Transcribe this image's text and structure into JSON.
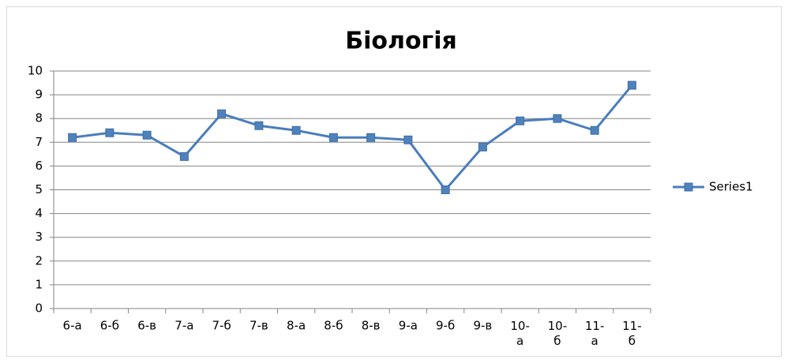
{
  "chart_data": {
    "type": "line",
    "title": "Біологія",
    "categories": [
      "6-а",
      "6-б",
      "6-в",
      "7-а",
      "7-б",
      "7-в",
      "8-а",
      "8-б",
      "8-в",
      "9-а",
      "9-б",
      "9-в",
      "10-а",
      "10-б",
      "11-а",
      "11-б"
    ],
    "series": [
      {
        "name": "Series1",
        "color": "#4a7ebb",
        "values": [
          7.2,
          7.4,
          7.3,
          6.4,
          8.2,
          7.7,
          7.5,
          7.2,
          7.2,
          7.1,
          5.0,
          6.8,
          7.9,
          8.0,
          7.5,
          9.4
        ]
      }
    ],
    "ylim": [
      0,
      10
    ],
    "yticks": [
      0,
      1,
      2,
      3,
      4,
      5,
      6,
      7,
      8,
      9,
      10
    ],
    "grid": true,
    "legend": "right"
  }
}
